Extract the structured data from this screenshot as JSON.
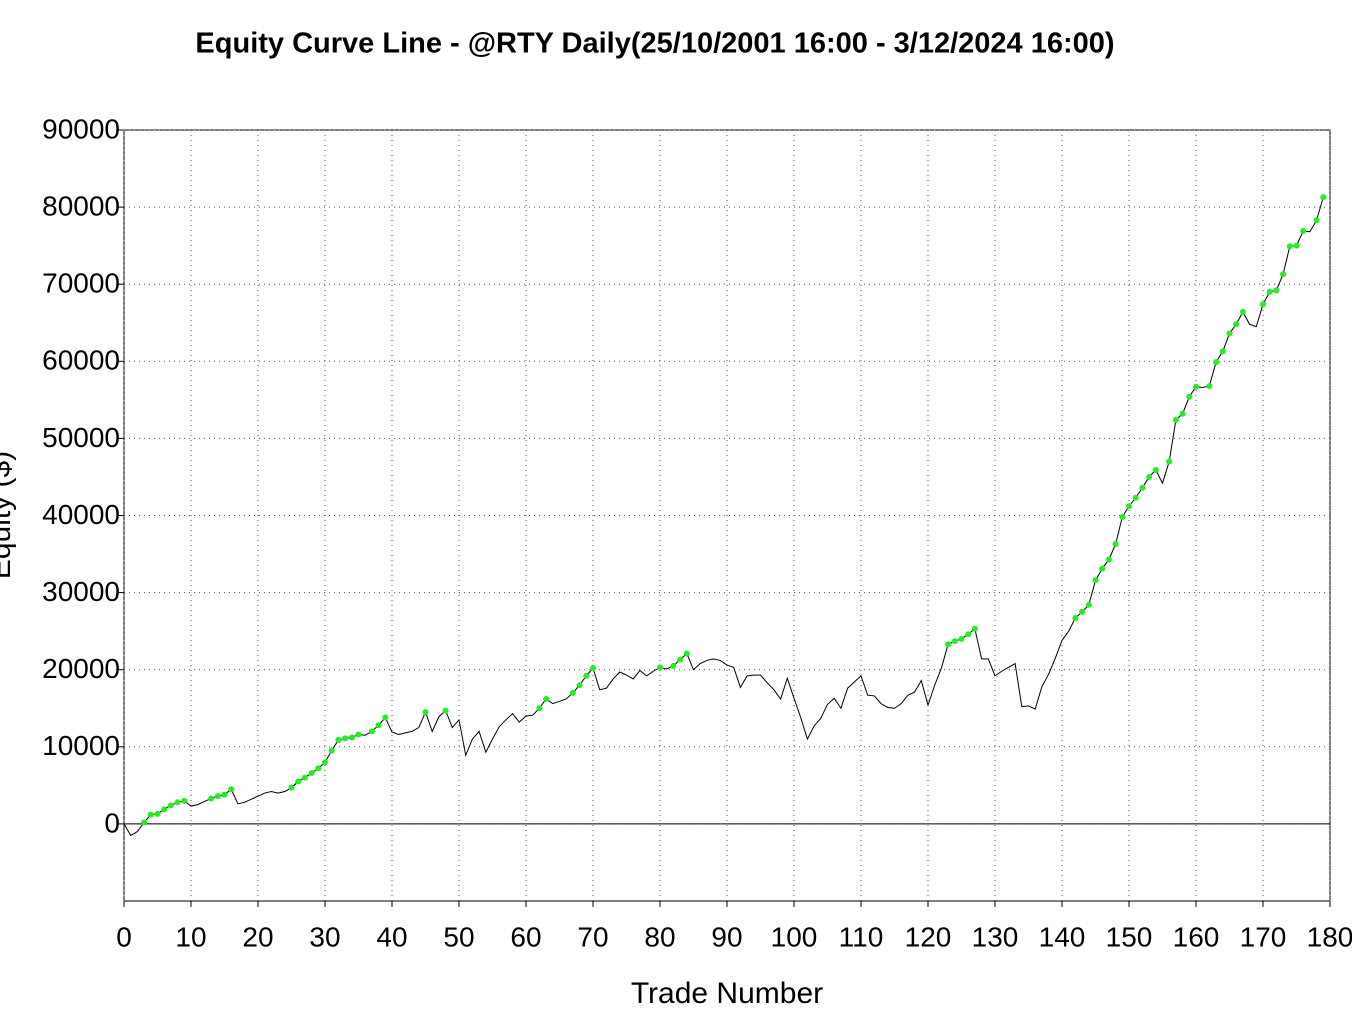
{
  "chart_data": {
    "type": "line",
    "title": "Equity Curve Line - @RTY Daily(25/10/2001 16:00 - 3/12/2024 16:00)",
    "x_label": "Trade Number",
    "y_label": "Equity ($)",
    "x": [
      0,
      1,
      2,
      3,
      4,
      5,
      6,
      7,
      8,
      9,
      10,
      11,
      12,
      13,
      14,
      15,
      16,
      17,
      18,
      19,
      20,
      21,
      22,
      23,
      24,
      25,
      26,
      27,
      28,
      29,
      30,
      31,
      32,
      33,
      34,
      35,
      36,
      37,
      38,
      39,
      40,
      41,
      42,
      43,
      44,
      45,
      46,
      47,
      48,
      49,
      50,
      51,
      52,
      53,
      54,
      55,
      56,
      57,
      58,
      59,
      60,
      61,
      62,
      63,
      64,
      65,
      66,
      67,
      68,
      69,
      70,
      71,
      72,
      73,
      74,
      75,
      76,
      77,
      78,
      79,
      80,
      81,
      82,
      83,
      84,
      85,
      86,
      87,
      88,
      89,
      90,
      91,
      92,
      93,
      94,
      95,
      96,
      97,
      98,
      99,
      100,
      101,
      102,
      103,
      104,
      105,
      106,
      107,
      108,
      109,
      110,
      111,
      112,
      113,
      114,
      115,
      116,
      117,
      118,
      119,
      120,
      121,
      122,
      123,
      124,
      125,
      126,
      127,
      128,
      129,
      130,
      131,
      132,
      133,
      134,
      135,
      136,
      137,
      138,
      139,
      140,
      141,
      142,
      143,
      144,
      145,
      146,
      147,
      148,
      149,
      150,
      151,
      152,
      153,
      154,
      155,
      156,
      157,
      158,
      159,
      160,
      161,
      162,
      163,
      164,
      165,
      166,
      167,
      168,
      169,
      170,
      171,
      172,
      173,
      174,
      175,
      176,
      177,
      178,
      179
    ],
    "series": [
      {
        "name": "Equity",
        "color": "#000000",
        "marker_color": "#22ee22",
        "values": [
          0,
          -1500,
          -1000,
          200,
          1200,
          1300,
          1900,
          2400,
          2800,
          3000,
          2300,
          2500,
          2900,
          3300,
          3600,
          3800,
          4500,
          2600,
          2800,
          3200,
          3600,
          4000,
          4200,
          4000,
          4200,
          4700,
          5500,
          6000,
          6600,
          7200,
          8000,
          9500,
          10900,
          11100,
          11200,
          11600,
          11500,
          12000,
          12800,
          13800,
          11900,
          11600,
          11800,
          12000,
          12500,
          14500,
          12000,
          13900,
          14700,
          12500,
          13500,
          8900,
          11000,
          12000,
          9300,
          11000,
          12600,
          13500,
          14300,
          13200,
          14000,
          14100,
          15000,
          16200,
          15600,
          15900,
          16200,
          17000,
          18000,
          19200,
          20200,
          17400,
          17600,
          18800,
          19700,
          19300,
          18800,
          19900,
          19200,
          19800,
          20300,
          20100,
          20500,
          21300,
          22100,
          20000,
          20800,
          21200,
          21400,
          21200,
          20600,
          20300,
          17700,
          19200,
          19300,
          19300,
          18300,
          17400,
          16200,
          18900,
          16300,
          13800,
          11000,
          12700,
          13700,
          15500,
          16300,
          15000,
          17600,
          18400,
          19200,
          16700,
          16600,
          15600,
          15100,
          15000,
          15600,
          16700,
          17100,
          18600,
          15400,
          18000,
          20200,
          23300,
          23700,
          24000,
          24600,
          25300,
          21400,
          21400,
          19200,
          19800,
          20300,
          20800,
          15200,
          15300,
          14900,
          17800,
          19400,
          21500,
          23800,
          25000,
          26700,
          27500,
          28400,
          31600,
          33100,
          34300,
          36300,
          39800,
          41200,
          42300,
          43600,
          45000,
          45900,
          44200,
          47000,
          52400,
          53200,
          55400,
          56700,
          56600,
          56800,
          59900,
          61300,
          63600,
          64800,
          66400,
          64800,
          64500,
          67400,
          69000,
          69200,
          71300,
          74900,
          75000,
          76900,
          76800,
          78300,
          81300
        ]
      }
    ],
    "xlim": [
      0,
      180
    ],
    "xticks": [
      0,
      10,
      20,
      30,
      40,
      50,
      60,
      70,
      80,
      90,
      100,
      110,
      120,
      130,
      140,
      150,
      160,
      170,
      180
    ],
    "ylim": [
      -10000,
      90000
    ],
    "yticks": [
      0,
      10000,
      20000,
      30000,
      40000,
      50000,
      60000,
      70000,
      80000,
      90000
    ],
    "grid": true
  }
}
